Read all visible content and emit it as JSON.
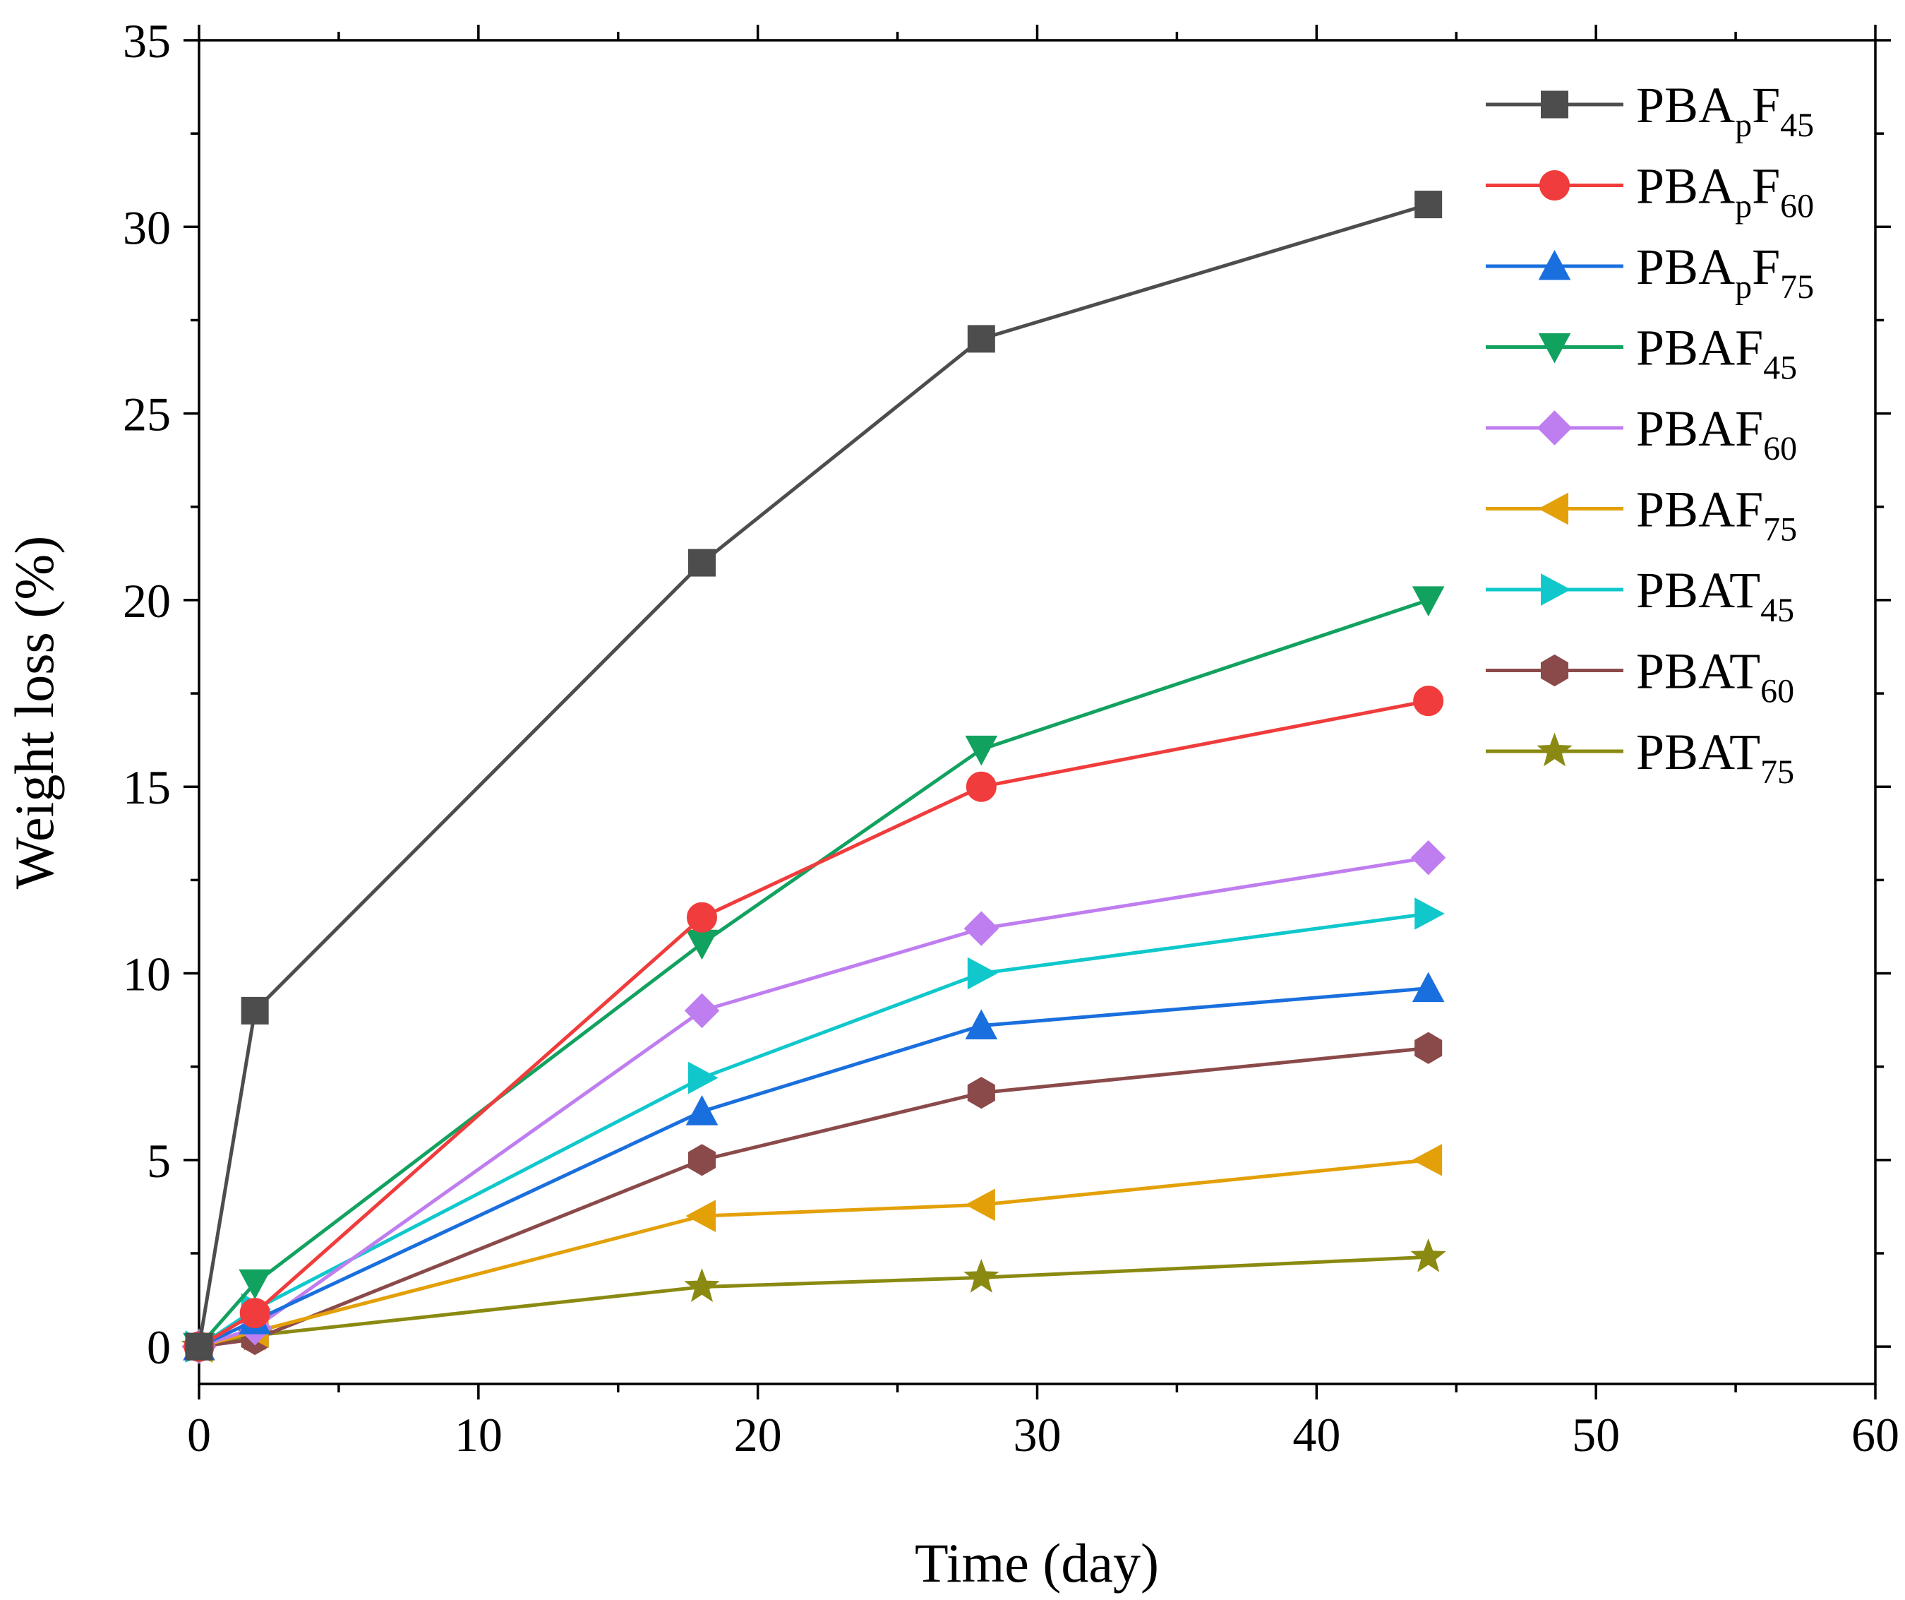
{
  "chart_data": {
    "type": "line",
    "xlabel": "Time (day)",
    "ylabel": "Weight loss (%)",
    "xlim": [
      0,
      60
    ],
    "ylim": [
      -1,
      35
    ],
    "xticks": [
      0,
      10,
      20,
      30,
      40,
      50,
      60
    ],
    "yticks": [
      0,
      5,
      10,
      15,
      20,
      25,
      30,
      35
    ],
    "grid": false,
    "legend_position": "top-right",
    "x": [
      0,
      2,
      18,
      28,
      44
    ],
    "series": [
      {
        "name": "PBApF45",
        "base": "PBA",
        "sub1": "p",
        "mid": "F",
        "sub2": "45",
        "color": "#4d4d4d",
        "marker": "square",
        "values": [
          0,
          9.0,
          21.0,
          27.0,
          30.6
        ]
      },
      {
        "name": "PBApF60",
        "base": "PBA",
        "sub1": "p",
        "mid": "F",
        "sub2": "60",
        "color": "#f03c3c",
        "marker": "circle",
        "values": [
          0,
          0.9,
          11.5,
          15.0,
          17.3
        ]
      },
      {
        "name": "PBApF75",
        "base": "PBA",
        "sub1": "p",
        "mid": "F",
        "sub2": "75",
        "color": "#1a6fde",
        "marker": "triangle-up",
        "values": [
          0,
          0.7,
          6.3,
          8.6,
          9.6
        ]
      },
      {
        "name": "PBAF45",
        "base": "PBAF",
        "sub1": "",
        "mid": "",
        "sub2": "45",
        "color": "#12a25f",
        "marker": "triangle-down",
        "values": [
          0,
          1.7,
          10.8,
          16.0,
          20.0
        ]
      },
      {
        "name": "PBAF60",
        "base": "PBAF",
        "sub1": "",
        "mid": "",
        "sub2": "60",
        "color": "#bf7ef0",
        "marker": "diamond",
        "values": [
          0,
          0.5,
          9.0,
          11.2,
          13.1
        ]
      },
      {
        "name": "PBAF75",
        "base": "PBAF",
        "sub1": "",
        "mid": "",
        "sub2": "75",
        "color": "#e3a008",
        "marker": "triangle-left",
        "values": [
          0,
          0.4,
          3.5,
          3.8,
          5.0
        ]
      },
      {
        "name": "PBAT45",
        "base": "PBAT",
        "sub1": "",
        "mid": "",
        "sub2": "45",
        "color": "#10c8cc",
        "marker": "triangle-right",
        "values": [
          0,
          1.0,
          7.2,
          10.0,
          11.6
        ]
      },
      {
        "name": "PBAT60",
        "base": "PBAT",
        "sub1": "",
        "mid": "",
        "sub2": "60",
        "color": "#8b4a4a",
        "marker": "hexagon",
        "values": [
          0,
          0.2,
          5.0,
          6.8,
          8.0
        ]
      },
      {
        "name": "PBAT75",
        "base": "PBAT",
        "sub1": "",
        "mid": "",
        "sub2": "75",
        "color": "#8a8a12",
        "marker": "star",
        "values": [
          0,
          0.3,
          1.6,
          1.85,
          2.4
        ]
      }
    ]
  }
}
